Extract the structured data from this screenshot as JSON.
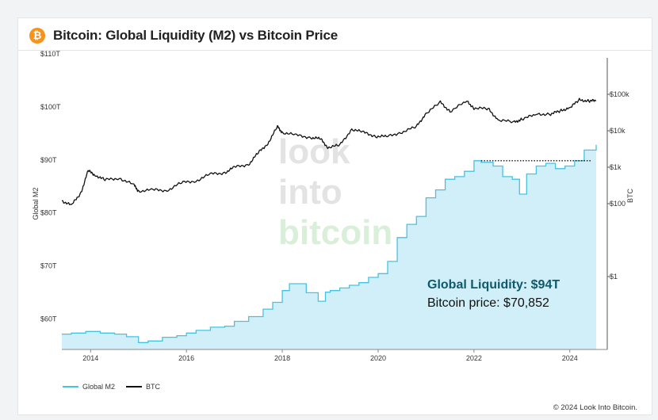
{
  "header": {
    "logo_glyph": "₿",
    "title": "Bitcoin: Global Liquidity (M2) vs Bitcoin Price"
  },
  "watermark": {
    "line1": "look",
    "line2": "into",
    "line3": "bitcoin"
  },
  "annotation": {
    "liquidity": "Global Liquidity: $94T",
    "price": "Bitcoin price: $70,852"
  },
  "legend": {
    "m2": "Global M2",
    "btc": "BTC"
  },
  "copyright": "© 2024 Look Into Bitcoin.",
  "colors": {
    "m2_line": "#46c3e3",
    "m2_fill": "#d0eff9",
    "btc_line": "#111111",
    "annotation_title": "#10596a",
    "logo": "#f7931a"
  },
  "chart_data": {
    "type": "line",
    "title": "Bitcoin: Global Liquidity (M2) vs Bitcoin Price",
    "x_ticks": [
      "2014",
      "2016",
      "2018",
      "2020",
      "2022",
      "2024"
    ],
    "x_range": [
      2013.4,
      2024.55
    ],
    "left_axis": {
      "label": "Global M2",
      "unit": "$T",
      "range": [
        55,
        110
      ],
      "ticks": [
        "$60T",
        "$70T",
        "$80T",
        "$90T",
        "$100T",
        "$110T"
      ]
    },
    "right_axis": {
      "label": "BTC",
      "scale": "log",
      "range": [
        0.01,
        1000000
      ],
      "ticks": [
        "$1",
        "$100",
        "$1k",
        "$10k",
        "$100k"
      ]
    },
    "grid": false,
    "legend_position": "bottom-left",
    "series": [
      {
        "name": "Global M2",
        "axis": "left",
        "points": [
          [
            2013.4,
            57.9
          ],
          [
            2013.6,
            58.1
          ],
          [
            2013.9,
            58.4
          ],
          [
            2014.2,
            58.1
          ],
          [
            2014.5,
            57.9
          ],
          [
            2014.75,
            57.4
          ],
          [
            2015.0,
            56.3
          ],
          [
            2015.2,
            56.6
          ],
          [
            2015.5,
            57.3
          ],
          [
            2015.8,
            57.6
          ],
          [
            2016.0,
            58.1
          ],
          [
            2016.2,
            58.6
          ],
          [
            2016.5,
            59.2
          ],
          [
            2016.8,
            59.4
          ],
          [
            2017.0,
            60.3
          ],
          [
            2017.3,
            61.2
          ],
          [
            2017.6,
            62.6
          ],
          [
            2017.8,
            63.9
          ],
          [
            2018.0,
            66.1
          ],
          [
            2018.15,
            67.4
          ],
          [
            2018.5,
            65.7
          ],
          [
            2018.75,
            64.1
          ],
          [
            2018.9,
            65.8
          ],
          [
            2019.0,
            66.1
          ],
          [
            2019.2,
            66.6
          ],
          [
            2019.4,
            67.1
          ],
          [
            2019.6,
            67.6
          ],
          [
            2019.8,
            68.6
          ],
          [
            2020.0,
            69.3
          ],
          [
            2020.2,
            71.6
          ],
          [
            2020.4,
            76.1
          ],
          [
            2020.6,
            78.6
          ],
          [
            2020.8,
            80.1
          ],
          [
            2021.0,
            83.6
          ],
          [
            2021.2,
            85.1
          ],
          [
            2021.4,
            87.1
          ],
          [
            2021.6,
            87.6
          ],
          [
            2021.8,
            88.6
          ],
          [
            2022.0,
            90.6
          ],
          [
            2022.15,
            90.3
          ],
          [
            2022.4,
            89.6
          ],
          [
            2022.6,
            87.6
          ],
          [
            2022.8,
            87.1
          ],
          [
            2022.95,
            84.3
          ],
          [
            2023.1,
            88.1
          ],
          [
            2023.3,
            89.6
          ],
          [
            2023.5,
            90.1
          ],
          [
            2023.7,
            89.1
          ],
          [
            2023.9,
            89.6
          ],
          [
            2024.1,
            90.6
          ],
          [
            2024.3,
            92.6
          ],
          [
            2024.45,
            92.6
          ],
          [
            2024.55,
            93.6
          ]
        ]
      },
      {
        "name": "BTC",
        "axis": "right",
        "points": [
          [
            2013.4,
            120
          ],
          [
            2013.6,
            90
          ],
          [
            2013.8,
            200
          ],
          [
            2013.95,
            800
          ],
          [
            2014.1,
            600
          ],
          [
            2014.3,
            450
          ],
          [
            2014.6,
            500
          ],
          [
            2014.9,
            330
          ],
          [
            2015.0,
            220
          ],
          [
            2015.3,
            240
          ],
          [
            2015.6,
            230
          ],
          [
            2015.9,
            380
          ],
          [
            2016.2,
            420
          ],
          [
            2016.5,
            650
          ],
          [
            2016.8,
            700
          ],
          [
            2017.0,
            1000
          ],
          [
            2017.3,
            1200
          ],
          [
            2017.5,
            2500
          ],
          [
            2017.7,
            4500
          ],
          [
            2017.9,
            13000
          ],
          [
            2018.0,
            9000
          ],
          [
            2018.3,
            7500
          ],
          [
            2018.6,
            6500
          ],
          [
            2018.8,
            6000
          ],
          [
            2018.95,
            3500
          ],
          [
            2019.2,
            4000
          ],
          [
            2019.45,
            11000
          ],
          [
            2019.7,
            9000
          ],
          [
            2019.95,
            7000
          ],
          [
            2020.2,
            7000
          ],
          [
            2020.5,
            9200
          ],
          [
            2020.8,
            13000
          ],
          [
            2021.0,
            30000
          ],
          [
            2021.3,
            60000
          ],
          [
            2021.5,
            34000
          ],
          [
            2021.85,
            65000
          ],
          [
            2022.0,
            42000
          ],
          [
            2022.3,
            40000
          ],
          [
            2022.5,
            20000
          ],
          [
            2022.85,
            17000
          ],
          [
            2023.0,
            21000
          ],
          [
            2023.3,
            28000
          ],
          [
            2023.6,
            29000
          ],
          [
            2023.8,
            35000
          ],
          [
            2024.0,
            43000
          ],
          [
            2024.2,
            70000
          ],
          [
            2024.4,
            65000
          ],
          [
            2024.55,
            68000
          ]
        ]
      }
    ],
    "reference_line": {
      "style": "dotted",
      "axis": "left",
      "y": 90.6,
      "x_range": [
        2022.15,
        2024.45
      ]
    }
  }
}
